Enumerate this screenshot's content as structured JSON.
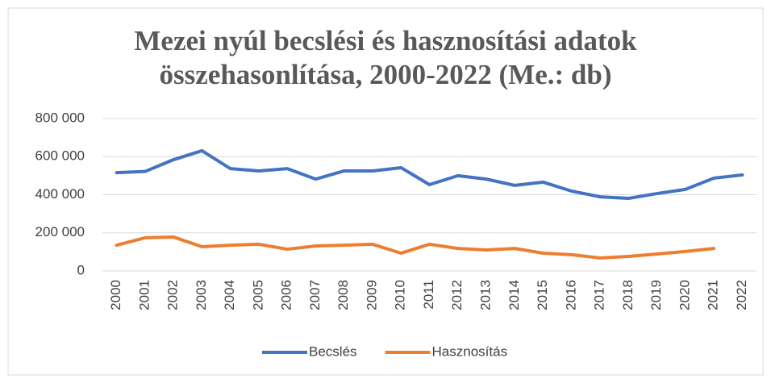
{
  "chart_data": {
    "type": "line",
    "title": "Mezei nyúl becslési és hasznosítási adatok összehasonlítása, 2000-2022 (Me.: db)",
    "categories": [
      "2000",
      "2001",
      "2002",
      "2003",
      "2004",
      "2005",
      "2006",
      "2007",
      "2008",
      "2009",
      "2010",
      "2011",
      "2012",
      "2013",
      "2014",
      "2015",
      "2016",
      "2017",
      "2018",
      "2019",
      "2020",
      "2021",
      "2022"
    ],
    "series": [
      {
        "name": "Becslés",
        "color": "#4472c4",
        "values": [
          516000,
          522000,
          584000,
          631000,
          537000,
          525000,
          537000,
          482000,
          525000,
          525000,
          542000,
          453000,
          500000,
          482000,
          449000,
          466000,
          419000,
          389000,
          381000,
          406000,
          428000,
          487000,
          504000
        ]
      },
      {
        "name": "Hasznosítás",
        "color": "#ed7d31",
        "values": [
          135000,
          174000,
          178000,
          127000,
          135000,
          140000,
          114000,
          131000,
          135000,
          140000,
          93000,
          140000,
          118000,
          110000,
          118000,
          93000,
          85000,
          68000,
          76000,
          89000,
          102000,
          118000,
          null
        ]
      }
    ],
    "ylim": [
      0,
      800000
    ],
    "yticks": [
      0,
      {
        "value": 200000,
        "label": "200 000"
      },
      {
        "value": 400000,
        "label": "400 000"
      },
      {
        "value": 600000,
        "label": "600 000"
      },
      {
        "value": 800000,
        "label": "800 000"
      }
    ],
    "grid": true,
    "legend": "bottom"
  }
}
